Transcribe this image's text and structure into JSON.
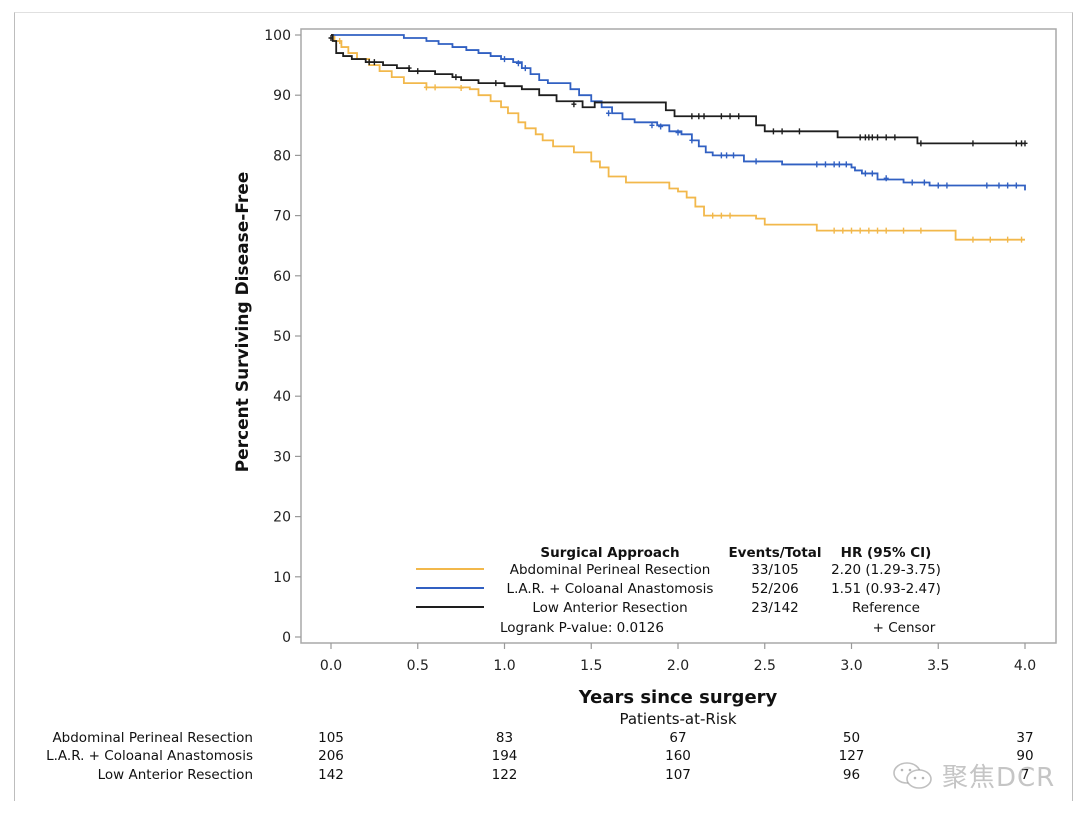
{
  "chart_data": {
    "type": "line",
    "subtype": "kaplan-meier",
    "title": "",
    "xlabel": "Years since surgery",
    "ylabel": "Percent Surviving Disease-Free",
    "xlim": [
      0,
      4
    ],
    "ylim": [
      0,
      100
    ],
    "xticks": [
      "0.0",
      "0.5",
      "1.0",
      "1.5",
      "2.0",
      "2.5",
      "3.0",
      "3.5",
      "4.0"
    ],
    "xtick_values": [
      0,
      0.5,
      1,
      1.5,
      2,
      2.5,
      3,
      3.5,
      4
    ],
    "yticks": [
      "0",
      "10",
      "20",
      "30",
      "40",
      "50",
      "60",
      "70",
      "80",
      "90",
      "100"
    ],
    "ytick_values": [
      0,
      10,
      20,
      30,
      40,
      50,
      60,
      70,
      80,
      90,
      100
    ],
    "grid": false,
    "legend": {
      "placement": "bottom-inside",
      "header": {
        "group": "Surgical Approach",
        "events": "Events/Total",
        "hr": "HR (95% CI)"
      },
      "entries": [
        {
          "name": "Abdominal Perineal Resection",
          "events": "33/105",
          "hr": "2.20 (1.29-3.75)",
          "color": "#f2b84b"
        },
        {
          "name": "L.A.R. + Coloanal Anastomosis",
          "events": "52/206",
          "hr": "1.51 (0.93-2.47)",
          "color": "#3160c2"
        },
        {
          "name": "Low Anterior Resection",
          "events": "23/142",
          "hr": "Reference",
          "color": "#1e1e1e"
        }
      ],
      "logrank": "Logrank P-value: 0.0126",
      "censor_label": "+ Censor"
    },
    "series": [
      {
        "name": "Abdominal Perineal Resection",
        "color": "#f2b84b",
        "steps": [
          [
            0,
            100
          ],
          [
            0.02,
            99
          ],
          [
            0.06,
            98
          ],
          [
            0.1,
            97
          ],
          [
            0.15,
            96
          ],
          [
            0.22,
            95
          ],
          [
            0.28,
            94
          ],
          [
            0.35,
            93
          ],
          [
            0.42,
            92
          ],
          [
            0.55,
            91.3
          ],
          [
            0.8,
            91
          ],
          [
            0.85,
            90
          ],
          [
            0.92,
            89
          ],
          [
            0.98,
            88
          ],
          [
            1.02,
            87
          ],
          [
            1.08,
            85.5
          ],
          [
            1.12,
            84.5
          ],
          [
            1.18,
            83.5
          ],
          [
            1.22,
            82.5
          ],
          [
            1.28,
            81.5
          ],
          [
            1.4,
            80.5
          ],
          [
            1.5,
            79
          ],
          [
            1.55,
            78
          ],
          [
            1.6,
            76.5
          ],
          [
            1.7,
            75.5
          ],
          [
            1.95,
            74.5
          ],
          [
            2.0,
            74
          ],
          [
            2.05,
            73
          ],
          [
            2.1,
            71.5
          ],
          [
            2.15,
            70
          ],
          [
            2.45,
            69.5
          ],
          [
            2.5,
            68.5
          ],
          [
            2.8,
            67.5
          ],
          [
            3.6,
            66
          ],
          [
            4.0,
            66
          ]
        ],
        "censors": [
          [
            0.05,
            99
          ],
          [
            0.55,
            91.3
          ],
          [
            0.6,
            91.3
          ],
          [
            0.75,
            91.2
          ],
          [
            2.2,
            70
          ],
          [
            2.25,
            70
          ],
          [
            2.3,
            70
          ],
          [
            2.9,
            67.5
          ],
          [
            2.95,
            67.5
          ],
          [
            3.0,
            67.5
          ],
          [
            3.05,
            67.5
          ],
          [
            3.1,
            67.5
          ],
          [
            3.15,
            67.5
          ],
          [
            3.2,
            67.5
          ],
          [
            3.3,
            67.5
          ],
          [
            3.4,
            67.5
          ],
          [
            3.7,
            66
          ],
          [
            3.8,
            66
          ],
          [
            3.9,
            66
          ],
          [
            3.98,
            66
          ]
        ]
      },
      {
        "name": "L.A.R. + Coloanal Anastomosis",
        "color": "#3160c2",
        "steps": [
          [
            0,
            100
          ],
          [
            0.42,
            99.5
          ],
          [
            0.55,
            99
          ],
          [
            0.62,
            98.5
          ],
          [
            0.7,
            98
          ],
          [
            0.78,
            97.5
          ],
          [
            0.85,
            97
          ],
          [
            0.92,
            96.5
          ],
          [
            0.98,
            96
          ],
          [
            1.05,
            95.5
          ],
          [
            1.1,
            94.5
          ],
          [
            1.15,
            93.5
          ],
          [
            1.2,
            92.5
          ],
          [
            1.25,
            92
          ],
          [
            1.38,
            91
          ],
          [
            1.43,
            90
          ],
          [
            1.5,
            89
          ],
          [
            1.56,
            88
          ],
          [
            1.62,
            87
          ],
          [
            1.68,
            86
          ],
          [
            1.75,
            85.5
          ],
          [
            1.88,
            85
          ],
          [
            1.95,
            84
          ],
          [
            2.02,
            83.5
          ],
          [
            2.08,
            82.5
          ],
          [
            2.12,
            81.5
          ],
          [
            2.16,
            80.5
          ],
          [
            2.2,
            80
          ],
          [
            2.38,
            79
          ],
          [
            2.6,
            78.5
          ],
          [
            3.0,
            78
          ],
          [
            3.02,
            77.5
          ],
          [
            3.06,
            77
          ],
          [
            3.15,
            76
          ],
          [
            3.3,
            75.5
          ],
          [
            3.45,
            75
          ],
          [
            3.98,
            75
          ],
          [
            4.0,
            74.2
          ]
        ],
        "censors": [
          [
            1.0,
            96
          ],
          [
            1.08,
            95.3
          ],
          [
            1.12,
            94.5
          ],
          [
            1.6,
            87
          ],
          [
            1.85,
            85
          ],
          [
            1.9,
            84.8
          ],
          [
            2.0,
            83.8
          ],
          [
            2.08,
            82.5
          ],
          [
            2.25,
            80
          ],
          [
            2.28,
            80
          ],
          [
            2.32,
            80
          ],
          [
            2.45,
            79
          ],
          [
            2.8,
            78.5
          ],
          [
            2.85,
            78.5
          ],
          [
            2.9,
            78.5
          ],
          [
            2.93,
            78.5
          ],
          [
            2.97,
            78.5
          ],
          [
            3.08,
            77
          ],
          [
            3.12,
            77
          ],
          [
            3.2,
            76.2
          ],
          [
            3.35,
            75.5
          ],
          [
            3.42,
            75.5
          ],
          [
            3.5,
            75
          ],
          [
            3.55,
            75
          ],
          [
            3.78,
            75
          ],
          [
            3.85,
            75
          ],
          [
            3.9,
            75
          ],
          [
            3.95,
            75
          ]
        ]
      },
      {
        "name": "Low Anterior Resection",
        "color": "#1e1e1e",
        "steps": [
          [
            0,
            100
          ],
          [
            0.01,
            99
          ],
          [
            0.03,
            97
          ],
          [
            0.07,
            96.5
          ],
          [
            0.12,
            96
          ],
          [
            0.2,
            95.5
          ],
          [
            0.3,
            95
          ],
          [
            0.38,
            94.5
          ],
          [
            0.45,
            94
          ],
          [
            0.6,
            93.5
          ],
          [
            0.7,
            93
          ],
          [
            0.75,
            92.5
          ],
          [
            0.85,
            92
          ],
          [
            1.0,
            91.5
          ],
          [
            1.1,
            91
          ],
          [
            1.2,
            90
          ],
          [
            1.3,
            89
          ],
          [
            1.45,
            88
          ],
          [
            1.52,
            89
          ],
          [
            1.52,
            88.8
          ],
          [
            1.9,
            88.8
          ],
          [
            1.93,
            87.5
          ],
          [
            1.98,
            86.5
          ],
          [
            2.0,
            86.5
          ],
          [
            2.4,
            86.5
          ],
          [
            2.45,
            85
          ],
          [
            2.5,
            84
          ],
          [
            2.85,
            84
          ],
          [
            2.92,
            83
          ],
          [
            3.35,
            83
          ],
          [
            3.38,
            82
          ],
          [
            4.0,
            82
          ]
        ],
        "censors": [
          [
            0.0,
            99.5
          ],
          [
            0.22,
            95.5
          ],
          [
            0.25,
            95.5
          ],
          [
            0.45,
            94.5
          ],
          [
            0.5,
            94
          ],
          [
            0.72,
            93
          ],
          [
            0.95,
            92
          ],
          [
            1.4,
            88.5
          ],
          [
            2.08,
            86.5
          ],
          [
            2.12,
            86.5
          ],
          [
            2.15,
            86.5
          ],
          [
            2.25,
            86.5
          ],
          [
            2.3,
            86.5
          ],
          [
            2.35,
            86.5
          ],
          [
            2.55,
            84
          ],
          [
            2.6,
            84
          ],
          [
            2.7,
            84
          ],
          [
            3.05,
            83
          ],
          [
            3.08,
            83
          ],
          [
            3.1,
            83
          ],
          [
            3.12,
            83
          ],
          [
            3.15,
            83
          ],
          [
            3.2,
            83
          ],
          [
            3.25,
            83
          ],
          [
            3.4,
            82
          ],
          [
            3.7,
            82
          ],
          [
            3.95,
            82
          ],
          [
            3.98,
            82
          ],
          [
            4.0,
            82
          ]
        ]
      }
    ],
    "at_risk": {
      "title": "Patients-at-Risk",
      "times": [
        0,
        1,
        2,
        3,
        4
      ],
      "rows": [
        {
          "name": "Abdominal Perineal Resection",
          "values": [
            "105",
            "83",
            "67",
            "50",
            "37"
          ]
        },
        {
          "name": "L.A.R. + Coloanal Anastomosis",
          "values": [
            "206",
            "194",
            "160",
            "127",
            "90"
          ]
        },
        {
          "name": "Low Anterior Resection",
          "values": [
            "142",
            "122",
            "107",
            "96",
            "7"
          ]
        }
      ]
    }
  },
  "watermark": {
    "text": "聚焦DCR"
  }
}
